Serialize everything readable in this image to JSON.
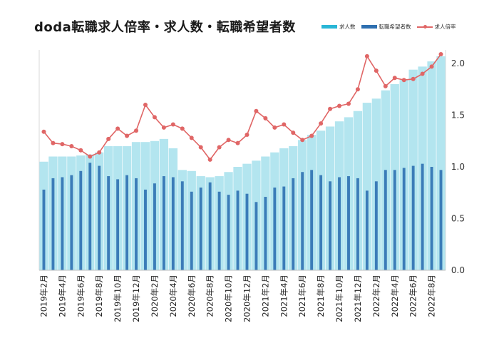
{
  "chart_data": {
    "type": "bar",
    "title": "doda転職求人倍率・求人数・転職希望者数",
    "categories": [
      "2019年2月",
      "2019年3月",
      "2019年4月",
      "2019年5月",
      "2019年6月",
      "2019年7月",
      "2019年8月",
      "2019年9月",
      "2019年10月",
      "2019年11月",
      "2019年12月",
      "2020年1月",
      "2020年2月",
      "2020年3月",
      "2020年4月",
      "2020年5月",
      "2020年6月",
      "2020年7月",
      "2020年8月",
      "2020年9月",
      "2020年10月",
      "2020年11月",
      "2020年12月",
      "2021年1月",
      "2021年2月",
      "2021年3月",
      "2021年4月",
      "2021年5月",
      "2021年6月",
      "2021年7月",
      "2021年8月",
      "2021年9月",
      "2021年10月",
      "2021年11月",
      "2021年12月",
      "2022年1月",
      "2022年2月",
      "2022年3月",
      "2022年4月",
      "2022年5月",
      "2022年6月",
      "2022年7月",
      "2022年8月",
      "2022年9月"
    ],
    "x_tick_labels": [
      "2019年2月",
      "2019年4月",
      "2019年6月",
      "2019年8月",
      "2019年10月",
      "2019年12月",
      "2020年2月",
      "2020年4月",
      "2020年6月",
      "2020年8月",
      "2020年10月",
      "2020年12月",
      "2021年2月",
      "2021年4月",
      "2021年6月",
      "2021年8月",
      "2021年10月",
      "2021年12月",
      "2022年2月",
      "2022年4月",
      "2022年6月",
      "2022年8月"
    ],
    "series": [
      {
        "name": "求人数",
        "type": "bar",
        "color": "#b3e5ef",
        "values": [
          1.05,
          1.1,
          1.1,
          1.1,
          1.11,
          1.12,
          1.14,
          1.2,
          1.2,
          1.2,
          1.24,
          1.24,
          1.25,
          1.27,
          1.18,
          0.97,
          0.96,
          0.91,
          0.9,
          0.91,
          0.95,
          1.0,
          1.03,
          1.06,
          1.1,
          1.14,
          1.18,
          1.2,
          1.26,
          1.31,
          1.35,
          1.39,
          1.44,
          1.48,
          1.54,
          1.62,
          1.66,
          1.74,
          1.8,
          1.84,
          1.94,
          1.97,
          2.02,
          2.07
        ]
      },
      {
        "name": "転職希望者数",
        "type": "bar",
        "color": "#3b7cb8",
        "values": [
          0.78,
          0.89,
          0.9,
          0.92,
          0.96,
          1.04,
          1.01,
          0.91,
          0.88,
          0.92,
          0.89,
          0.78,
          0.84,
          0.91,
          0.9,
          0.86,
          0.76,
          0.8,
          0.85,
          0.76,
          0.73,
          0.77,
          0.74,
          0.66,
          0.71,
          0.8,
          0.81,
          0.89,
          0.95,
          0.97,
          0.92,
          0.86,
          0.9,
          0.91,
          0.89,
          0.77,
          0.86,
          0.97,
          0.97,
          0.99,
          1.01,
          1.03,
          1.0,
          0.97
        ]
      },
      {
        "name": "求人倍率",
        "type": "line",
        "color": "#e06666",
        "values": [
          1.34,
          1.23,
          1.22,
          1.2,
          1.16,
          1.1,
          1.14,
          1.27,
          1.37,
          1.3,
          1.35,
          1.6,
          1.48,
          1.38,
          1.41,
          1.37,
          1.28,
          1.19,
          1.07,
          1.19,
          1.26,
          1.23,
          1.31,
          1.54,
          1.47,
          1.38,
          1.41,
          1.33,
          1.26,
          1.3,
          1.42,
          1.56,
          1.59,
          1.61,
          1.75,
          2.07,
          1.93,
          1.78,
          1.86,
          1.84,
          1.85,
          1.9,
          1.97,
          2.09
        ]
      }
    ],
    "y_right": {
      "range": [
        0,
        2.2
      ],
      "ticks": [
        "0.0",
        "0.5",
        "1.0",
        "1.5",
        "2.0"
      ]
    },
    "grid": false,
    "legend_placement": "top-right"
  }
}
